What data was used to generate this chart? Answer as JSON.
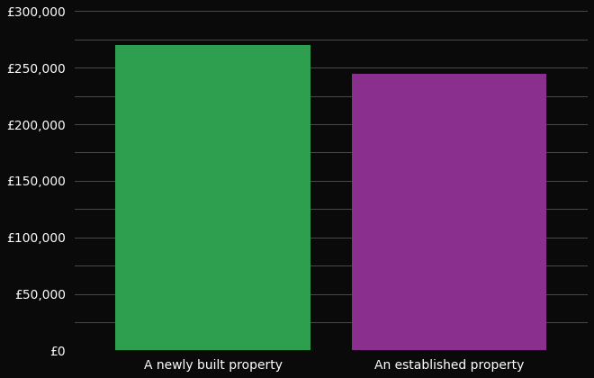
{
  "categories": [
    "A newly built property",
    "An established property"
  ],
  "values": [
    270000,
    245000
  ],
  "bar_colors": [
    "#2e9e4f",
    "#8b2f8e"
  ],
  "background_color": "#0a0a0a",
  "text_color": "#ffffff",
  "grid_color": "#555555",
  "ylim": [
    0,
    300000
  ],
  "yticks": [
    0,
    25000,
    50000,
    75000,
    100000,
    125000,
    150000,
    175000,
    200000,
    225000,
    250000,
    275000,
    300000
  ],
  "ytick_labels_show": [
    0,
    50000,
    100000,
    150000,
    200000,
    250000,
    300000
  ],
  "ytick_labels_map": {
    "0": "£0",
    "50000": "£50,000",
    "100000": "£100,000",
    "150000": "£150,000",
    "200000": "£200,000",
    "250000": "£250,000",
    "300000": "£300,000"
  },
  "bar_width": 0.38,
  "xlabel_fontsize": 10,
  "tick_fontsize": 10,
  "x_positions": [
    0.27,
    0.73
  ]
}
